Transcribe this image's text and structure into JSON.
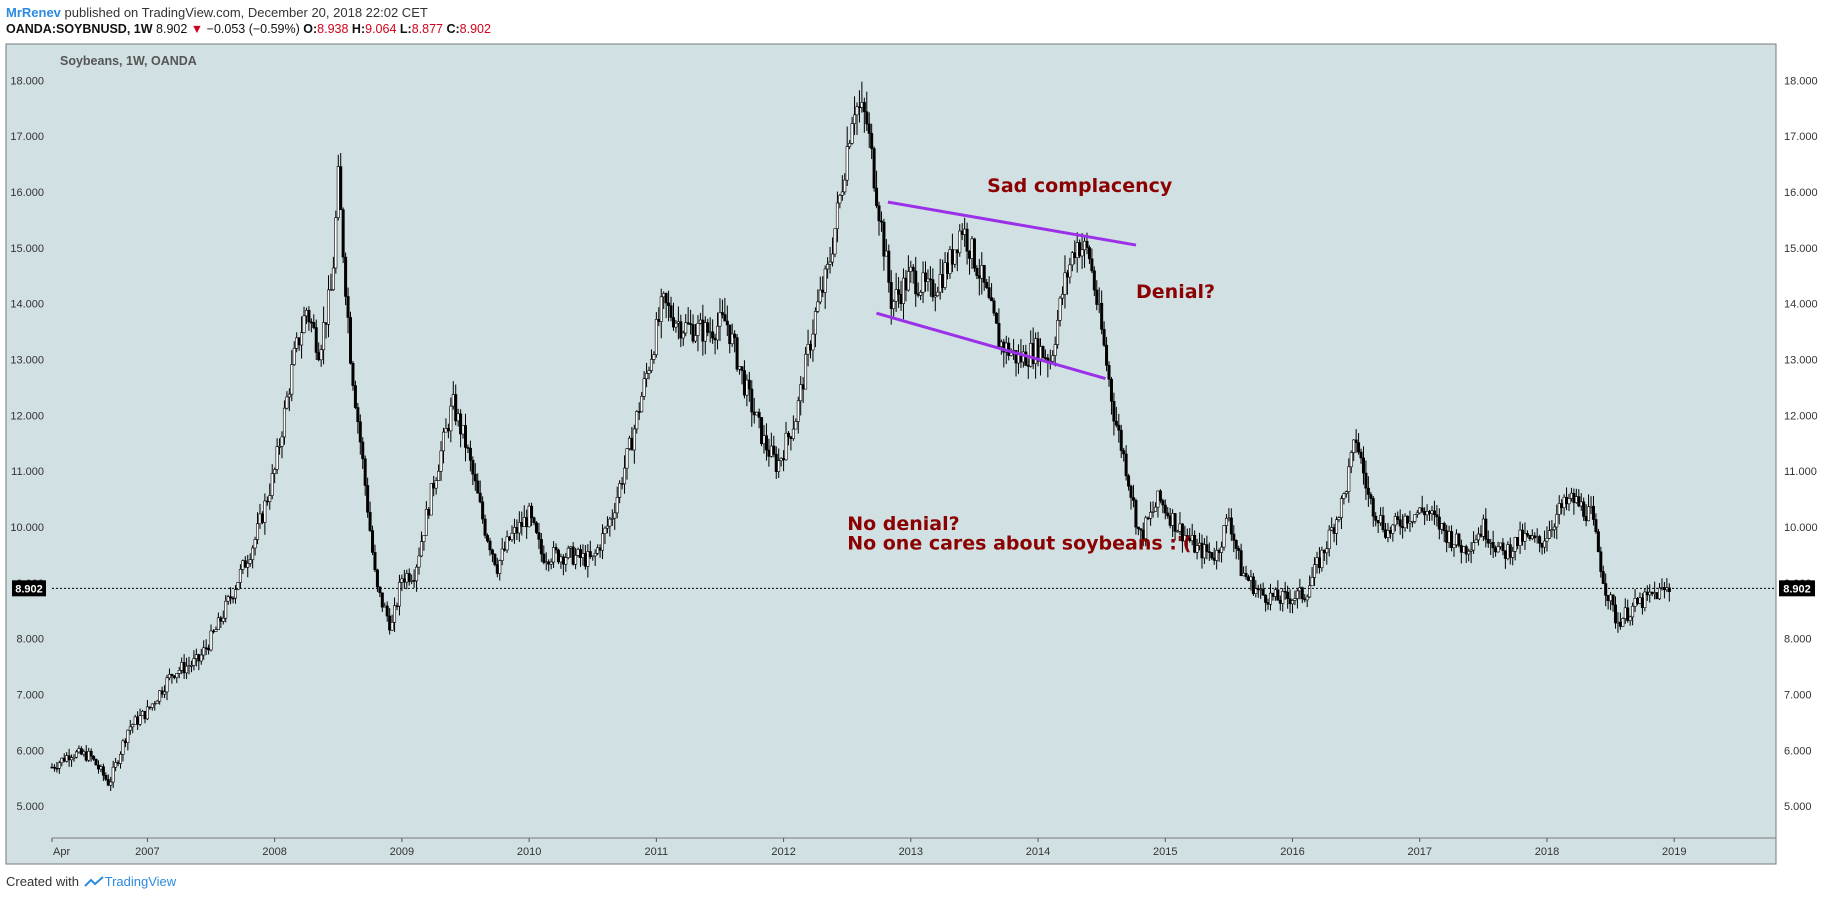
{
  "header": {
    "author": "MrRenev",
    "published_text": "published on TradingView.com, December 20, 2018 22:02 CET",
    "symbol": "OANDA:SOYBNUSD, 1W",
    "last": "8.902",
    "change_arrow": "▼",
    "change": "−0.053 (−0.59%)",
    "o_label": "O:",
    "o_value": "8.938",
    "h_label": "H:",
    "h_value": "9.064",
    "l_label": "L:",
    "l_value": "8.877",
    "c_label": "C:",
    "c_value": "8.902"
  },
  "footer": {
    "created_with": "Created with",
    "brand": "TradingView"
  },
  "chart_data": {
    "type": "candlestick",
    "legend": "Soybeans, 1W, OANDA",
    "y_ticks": [
      "5.000",
      "6.000",
      "7.000",
      "8.000",
      "9.000",
      "10.000",
      "11.000",
      "12.000",
      "13.000",
      "14.000",
      "15.000",
      "16.000",
      "17.000",
      "18.000"
    ],
    "ylim": [
      4.43,
      18.58
    ],
    "x_ticks": [
      {
        "label": "Apr",
        "x": 2006.25
      },
      {
        "label": "2007",
        "x": 2007
      },
      {
        "label": "2008",
        "x": 2008
      },
      {
        "label": "2009",
        "x": 2009
      },
      {
        "label": "2010",
        "x": 2010
      },
      {
        "label": "2011",
        "x": 2011
      },
      {
        "label": "2012",
        "x": 2012
      },
      {
        "label": "2013",
        "x": 2013
      },
      {
        "label": "2014",
        "x": 2014
      },
      {
        "label": "2015",
        "x": 2015
      },
      {
        "label": "2016",
        "x": 2016
      },
      {
        "label": "2017",
        "x": 2017
      },
      {
        "label": "2018",
        "x": 2018
      },
      {
        "label": "2019",
        "x": 2019
      }
    ],
    "xlim": [
      2006.25,
      2019.8
    ],
    "last_price_label": "8.902",
    "last_price": 8.902,
    "price_path": [
      [
        2006.25,
        5.7
      ],
      [
        2006.4,
        5.95
      ],
      [
        2006.55,
        5.9
      ],
      [
        2006.7,
        5.4
      ],
      [
        2006.85,
        6.4
      ],
      [
        2007.0,
        6.7
      ],
      [
        2007.2,
        7.4
      ],
      [
        2007.4,
        7.6
      ],
      [
        2007.55,
        8.2
      ],
      [
        2007.7,
        9.0
      ],
      [
        2007.85,
        9.8
      ],
      [
        2008.0,
        11.0
      ],
      [
        2008.15,
        13.0
      ],
      [
        2008.25,
        13.9
      ],
      [
        2008.35,
        13.2
      ],
      [
        2008.45,
        14.3
      ],
      [
        2008.5,
        16.2
      ],
      [
        2008.6,
        13.0
      ],
      [
        2008.7,
        11.0
      ],
      [
        2008.8,
        8.9
      ],
      [
        2008.92,
        8.2
      ],
      [
        2009.0,
        9.1
      ],
      [
        2009.1,
        9.2
      ],
      [
        2009.25,
        10.8
      ],
      [
        2009.4,
        12.2
      ],
      [
        2009.5,
        11.5
      ],
      [
        2009.65,
        10.0
      ],
      [
        2009.75,
        9.3
      ],
      [
        2009.85,
        9.8
      ],
      [
        2010.0,
        10.2
      ],
      [
        2010.1,
        9.5
      ],
      [
        2010.3,
        9.5
      ],
      [
        2010.5,
        9.4
      ],
      [
        2010.65,
        10.2
      ],
      [
        2010.8,
        11.5
      ],
      [
        2010.95,
        13.0
      ],
      [
        2011.05,
        14.0
      ],
      [
        2011.2,
        13.6
      ],
      [
        2011.4,
        13.5
      ],
      [
        2011.55,
        13.7
      ],
      [
        2011.7,
        12.5
      ],
      [
        2011.85,
        11.5
      ],
      [
        2011.95,
        11.1
      ],
      [
        2012.1,
        12.0
      ],
      [
        2012.25,
        13.8
      ],
      [
        2012.35,
        14.6
      ],
      [
        2012.45,
        16.0
      ],
      [
        2012.55,
        17.6
      ],
      [
        2012.65,
        17.3
      ],
      [
        2012.75,
        15.7
      ],
      [
        2012.85,
        14.0
      ],
      [
        2013.0,
        14.5
      ],
      [
        2013.15,
        14.2
      ],
      [
        2013.3,
        14.7
      ],
      [
        2013.4,
        15.4
      ],
      [
        2013.55,
        14.5
      ],
      [
        2013.7,
        13.3
      ],
      [
        2013.85,
        13.0
      ],
      [
        2014.0,
        13.2
      ],
      [
        2014.1,
        13.0
      ],
      [
        2014.2,
        14.3
      ],
      [
        2014.3,
        15.1
      ],
      [
        2014.4,
        14.9
      ],
      [
        2014.5,
        13.5
      ],
      [
        2014.6,
        12.0
      ],
      [
        2014.7,
        11.0
      ],
      [
        2014.8,
        9.8
      ],
      [
        2014.95,
        10.5
      ],
      [
        2015.1,
        10.0
      ],
      [
        2015.25,
        9.6
      ],
      [
        2015.4,
        9.5
      ],
      [
        2015.5,
        10.2
      ],
      [
        2015.6,
        9.2
      ],
      [
        2015.75,
        8.8
      ],
      [
        2015.9,
        8.7
      ],
      [
        2016.1,
        8.8
      ],
      [
        2016.25,
        9.6
      ],
      [
        2016.4,
        10.5
      ],
      [
        2016.5,
        11.6
      ],
      [
        2016.6,
        10.5
      ],
      [
        2016.75,
        9.9
      ],
      [
        2016.9,
        10.2
      ],
      [
        2017.05,
        10.3
      ],
      [
        2017.2,
        9.9
      ],
      [
        2017.35,
        9.6
      ],
      [
        2017.5,
        10.0
      ],
      [
        2017.65,
        9.5
      ],
      [
        2017.8,
        9.8
      ],
      [
        2017.95,
        9.7
      ],
      [
        2018.1,
        10.3
      ],
      [
        2018.2,
        10.5
      ],
      [
        2018.35,
        10.2
      ],
      [
        2018.45,
        9.0
      ],
      [
        2018.55,
        8.3
      ],
      [
        2018.7,
        8.6
      ],
      [
        2018.85,
        8.8
      ],
      [
        2018.97,
        8.902
      ]
    ],
    "annotations": [
      {
        "text": "Sad complacency",
        "x": 2013.6,
        "y": 16.0
      },
      {
        "text": "Denial?",
        "x": 2014.77,
        "y": 14.1
      },
      {
        "text": "No denial?",
        "x": 2012.5,
        "y": 9.95
      },
      {
        "text": "No one cares about soybeans :'(",
        "x": 2012.5,
        "y": 9.6
      }
    ],
    "trend_lines": [
      {
        "from": [
          2012.82,
          15.82
        ],
        "to": [
          2014.77,
          15.05
        ],
        "color": "#9b30e8"
      },
      {
        "from": [
          2012.73,
          13.83
        ],
        "to": [
          2014.53,
          12.66
        ],
        "color": "#9b30e8"
      }
    ],
    "colors": {
      "background": "#d1e0e3",
      "candles": "#000000",
      "annotation": "#8b0000",
      "trend": "#9b30e8"
    }
  }
}
